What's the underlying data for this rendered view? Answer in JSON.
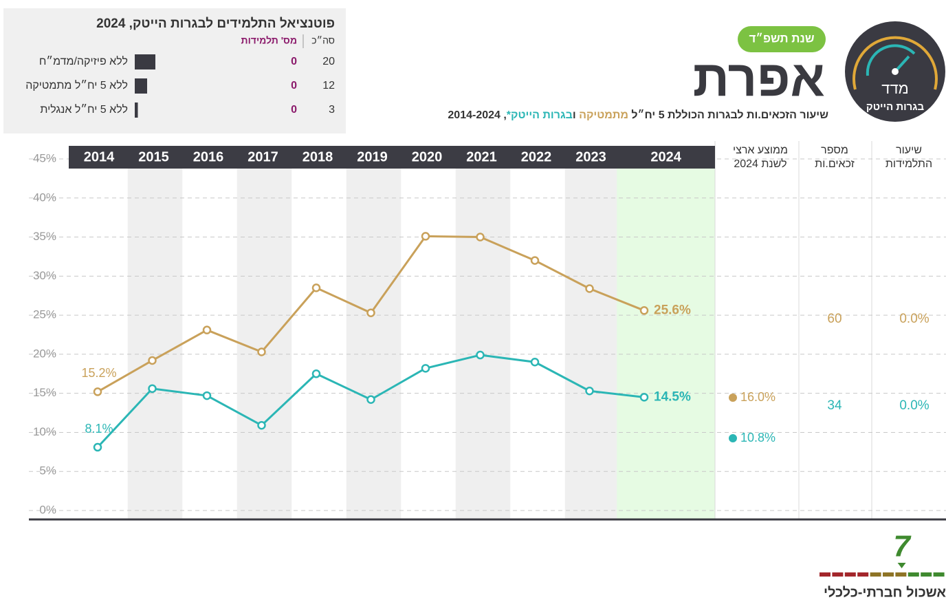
{
  "chart_data": {
    "type": "line",
    "title": "אפרת",
    "badge": "שנת תשפ״ד",
    "subtitle_start": "שיעור הזכאים.ות לבגרות הכוללת 5 יח״ל",
    "subtitle_joiner": "ו",
    "subtitle_end": ", 2014-2024",
    "categories": [
      "2014",
      "2015",
      "2016",
      "2017",
      "2018",
      "2019",
      "2020",
      "2021",
      "2022",
      "2023",
      "2024"
    ],
    "series": [
      {
        "name": "מתמטיקה",
        "color": "#c9a15a",
        "values": [
          15.2,
          19.2,
          23.1,
          20.3,
          28.5,
          25.3,
          35.1,
          35.0,
          32.0,
          28.4,
          25.6
        ],
        "value_labels": [
          "15.2%",
          null,
          null,
          null,
          null,
          null,
          null,
          null,
          null,
          null,
          "25.6%"
        ]
      },
      {
        "name": "בגרות הייטק*",
        "color": "#2bb6b5",
        "values": [
          8.1,
          15.6,
          14.7,
          10.9,
          17.5,
          14.2,
          18.2,
          19.9,
          19.0,
          15.3,
          14.5
        ],
        "value_labels": [
          "8.1%",
          null,
          null,
          null,
          null,
          null,
          null,
          null,
          null,
          null,
          "14.5%"
        ]
      }
    ],
    "ylim": [
      0,
      45
    ],
    "yticks": [
      {
        "value": 0,
        "label": "0%"
      },
      {
        "value": 5,
        "label": "5%"
      },
      {
        "value": 10,
        "label": "10%"
      },
      {
        "value": 15,
        "label": "15%"
      },
      {
        "value": 20,
        "label": "20%"
      },
      {
        "value": 25,
        "label": "25%"
      },
      {
        "value": 30,
        "label": "30%"
      },
      {
        "value": 35,
        "label": "35%"
      },
      {
        "value": 40,
        "label": "40%"
      },
      {
        "value": 45,
        "label": "45%"
      }
    ],
    "grid": true
  },
  "side_table": {
    "national_avg": {
      "header": [
        "ממוצע ארצי",
        "לשנת 2024"
      ],
      "values": [
        16.0,
        10.8
      ],
      "value_labels": [
        "16.0%",
        "10.8%"
      ]
    },
    "eligible": {
      "header": [
        "מספר",
        "זכאים.ות"
      ],
      "values": [
        60,
        34
      ]
    },
    "female_rate": {
      "header": [
        "שיעור",
        "התלמידות"
      ],
      "values": [
        0.0,
        0.0
      ],
      "value_labels": [
        "0.0%",
        "0.0%"
      ]
    }
  },
  "potential": {
    "title": "פוטנציאל התלמידים לבגרות הייטק, 2024",
    "total_header": "סה״כ",
    "female_header": "מס' תלמידות",
    "rows": [
      {
        "label": "ללא פיזיקה/מדמ״ח",
        "total": 20,
        "female": 0
      },
      {
        "label": "ללא 5 יח״ל מתמטיקה",
        "total": 12,
        "female": 0
      },
      {
        "label": "ללא 5 יח״ל אנגלית",
        "total": 3,
        "female": 0
      }
    ]
  },
  "logo": {
    "top": "מדד",
    "bottom": "בגרות הייטק"
  },
  "cluster": {
    "value": 7,
    "label": "אשכול חברתי-כלכלי"
  }
}
